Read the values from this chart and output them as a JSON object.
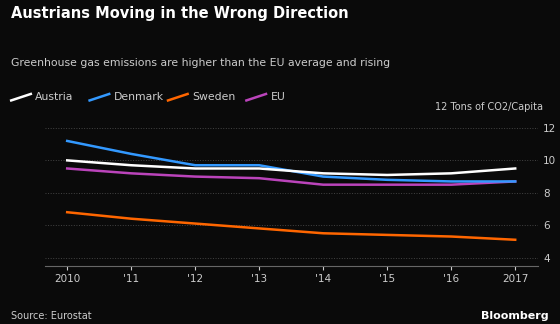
{
  "title": "Austrians Moving in the Wrong Direction",
  "subtitle": "Greenhouse gas emissions are higher than the EU average and rising",
  "source": "Source: Eurostat",
  "ylabel": "12 Tons of CO2/Capita",
  "years": [
    2010,
    2011,
    2012,
    2013,
    2014,
    2015,
    2016,
    2017
  ],
  "austria": [
    10.0,
    9.7,
    9.5,
    9.5,
    9.2,
    9.1,
    9.2,
    9.5
  ],
  "denmark": [
    11.2,
    10.4,
    9.7,
    9.7,
    9.0,
    8.8,
    8.7,
    8.7
  ],
  "sweden": [
    6.8,
    6.4,
    6.1,
    5.8,
    5.5,
    5.4,
    5.3,
    5.1
  ],
  "eu": [
    9.5,
    9.2,
    9.0,
    8.9,
    8.5,
    8.5,
    8.5,
    8.7
  ],
  "austria_color": "#ffffff",
  "denmark_color": "#3399ff",
  "sweden_color": "#ff6600",
  "eu_color": "#bb44bb",
  "bg_color": "#0a0a0a",
  "grid_color": "#444444",
  "text_color": "#ffffff",
  "label_color": "#cccccc",
  "axis_color": "#666666",
  "ylim": [
    3.5,
    12.5
  ],
  "yticks": [
    4,
    6,
    8,
    10,
    12
  ],
  "xtick_labels": [
    "2010",
    "'11",
    "'12",
    "'13",
    "'14",
    "'15",
    "'16",
    "2017"
  ],
  "legend_entries": [
    "Austria",
    "Denmark",
    "Sweden",
    "EU"
  ]
}
